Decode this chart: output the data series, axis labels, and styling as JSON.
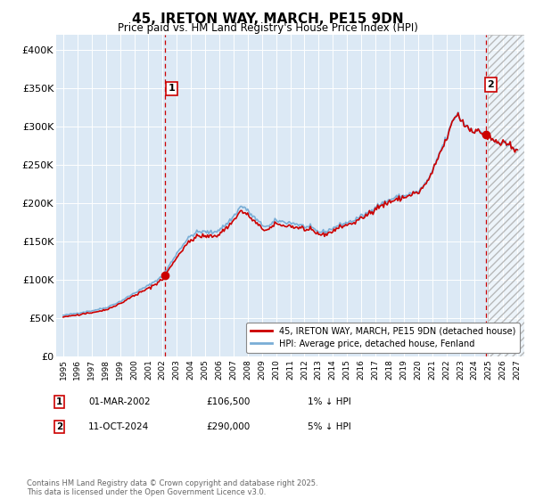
{
  "title": "45, IRETON WAY, MARCH, PE15 9DN",
  "subtitle": "Price paid vs. HM Land Registry's House Price Index (HPI)",
  "legend_line1": "45, IRETON WAY, MARCH, PE15 9DN (detached house)",
  "legend_line2": "HPI: Average price, detached house, Fenland",
  "annotation1_label": "1",
  "annotation1_date": "01-MAR-2002",
  "annotation1_price": "£106,500",
  "annotation1_hpi": "1% ↓ HPI",
  "annotation2_label": "2",
  "annotation2_date": "11-OCT-2024",
  "annotation2_price": "£290,000",
  "annotation2_hpi": "5% ↓ HPI",
  "footnote": "Contains HM Land Registry data © Crown copyright and database right 2025.\nThis data is licensed under the Open Government Licence v3.0.",
  "line_color_property": "#cc0000",
  "line_color_hpi": "#7aaed6",
  "vline_color": "#cc0000",
  "background_color": "#dce9f5",
  "ylim": [
    0,
    420000
  ],
  "yticks": [
    0,
    50000,
    100000,
    150000,
    200000,
    250000,
    300000,
    350000,
    400000
  ],
  "ytick_labels": [
    "£0",
    "£50K",
    "£100K",
    "£150K",
    "£200K",
    "£250K",
    "£300K",
    "£350K",
    "£400K"
  ],
  "xmin": 1994.5,
  "xmax": 2027.5,
  "purchase1_x": 2002.17,
  "purchase1_y": 106500,
  "purchase2_x": 2024.78,
  "purchase2_y": 290000,
  "hatch_start": 2024.95,
  "hatch_end": 2027.5
}
